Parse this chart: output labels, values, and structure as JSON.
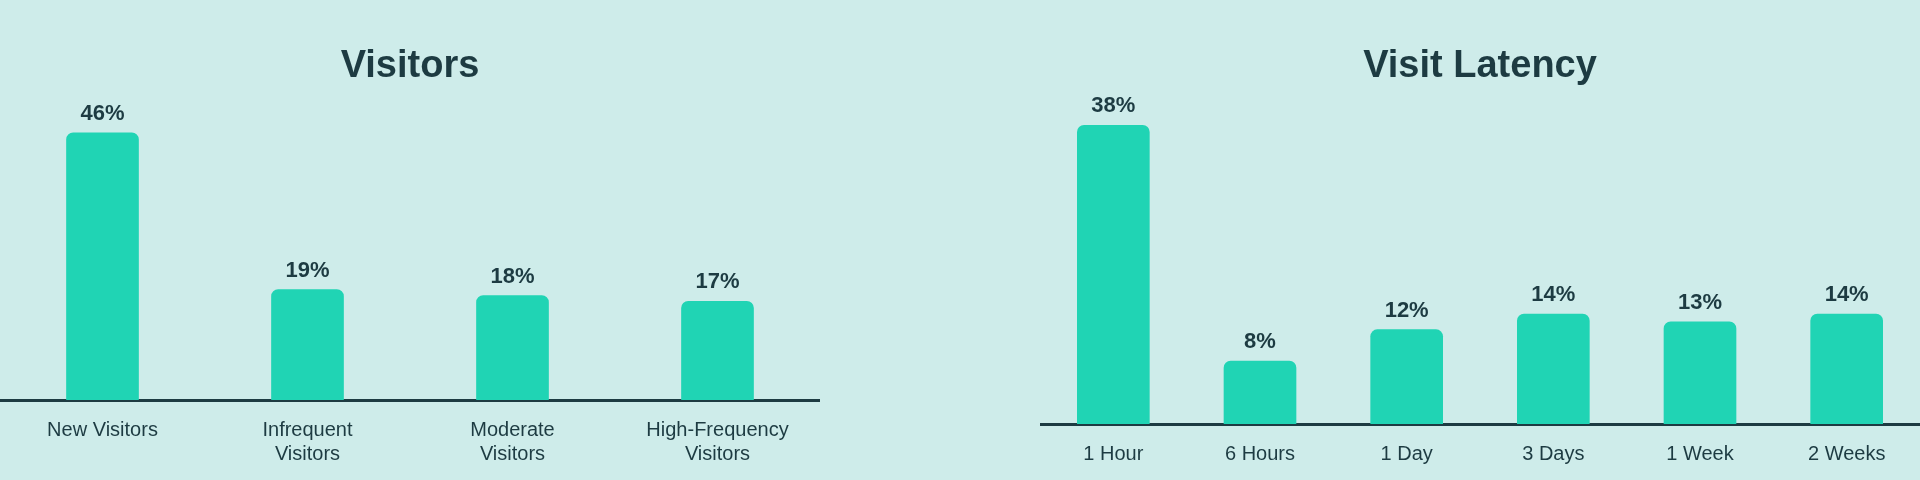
{
  "chart_data": [
    {
      "type": "bar",
      "title": "Visitors",
      "categories": [
        "New Visitors",
        "Infrequent Visitors",
        "Moderate Visitors",
        "High-Frequency Visitors"
      ],
      "series": [
        {
          "color": "#20d4b4",
          "values": [
            46,
            19,
            18,
            17
          ],
          "value_labels": [
            "46%",
            "19%",
            "18%",
            "17%"
          ]
        }
      ],
      "grid": false,
      "legend": false
    },
    {
      "type": "bar",
      "title": "Visit Latency",
      "categories": [
        "1 Hour",
        "6 Hours",
        "1 Day",
        "3 Days",
        "1 Week",
        "2 Weeks"
      ],
      "series": [
        {
          "color": "#20d4b4",
          "values": [
            38,
            8,
            12,
            14,
            13,
            14
          ],
          "value_labels": [
            "38%",
            "8%",
            "12%",
            "14%",
            "13%",
            "14%"
          ]
        }
      ],
      "grid": false,
      "legend": false
    }
  ]
}
